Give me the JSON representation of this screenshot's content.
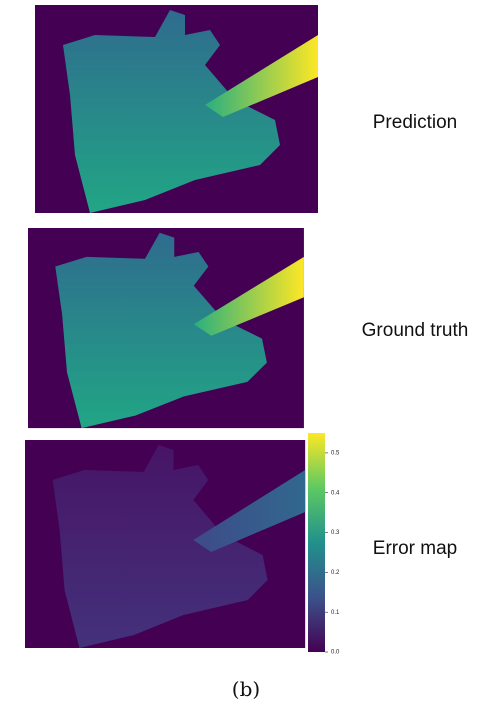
{
  "panels": [
    {
      "label": "Prediction"
    },
    {
      "label": "Ground truth"
    },
    {
      "label": "Error map"
    }
  ],
  "colorbar": {
    "lim": [
      0,
      0.55
    ],
    "ticks": [
      {
        "value": 0,
        "label": "0.0"
      },
      {
        "value": 0.1,
        "label": "0.1"
      },
      {
        "value": 0.2,
        "label": "0.2"
      },
      {
        "value": 0.3,
        "label": "0.3"
      },
      {
        "value": 0.4,
        "label": "0.4"
      },
      {
        "value": 0.5,
        "label": "0.5"
      }
    ]
  },
  "caption": "(b)"
}
